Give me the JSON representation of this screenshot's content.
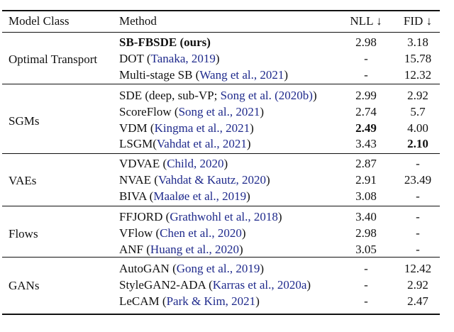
{
  "header": {
    "model_class": "Model Class",
    "method": "Method",
    "nll": "NLL ↓",
    "fid": "FID ↓"
  },
  "colors": {
    "citation": "#1f2a8c",
    "text": "#111111"
  },
  "groups": [
    {
      "name": "Optimal Transport",
      "rows": [
        {
          "pre": "SB-FBSDE (ours)",
          "cite": "",
          "post": "",
          "nll": "2.98",
          "fid": "3.18",
          "bold_method": true
        },
        {
          "pre": "DOT (",
          "cite": "Tanaka, 2019",
          "post": ")",
          "nll": "-",
          "fid": "15.78"
        },
        {
          "pre": "Multi-stage SB (",
          "cite": "Wang et al., 2021",
          "post": ")",
          "nll": "-",
          "fid": "12.32"
        }
      ]
    },
    {
      "name": "SGMs",
      "rows": [
        {
          "pre": "SDE (deep, sub-VP; ",
          "cite": "Song et al. (2020b)",
          "post": ")",
          "nll": "2.99",
          "fid": "2.92"
        },
        {
          "pre": "ScoreFlow (",
          "cite": "Song et al., 2021",
          "post": ")",
          "nll": "2.74",
          "fid": "5.7"
        },
        {
          "pre": "VDM (",
          "cite": "Kingma et al., 2021",
          "post": ")",
          "nll": "2.49",
          "fid": "4.00",
          "bold_nll": true
        },
        {
          "pre": "LSGM(",
          "cite": "Vahdat et al., 2021",
          "post": ")",
          "nll": "3.43",
          "fid": "2.10",
          "bold_fid": true
        }
      ]
    },
    {
      "name": "VAEs",
      "rows": [
        {
          "pre": "VDVAE (",
          "cite": "Child, 2020",
          "post": ")",
          "nll": "2.87",
          "fid": "-"
        },
        {
          "pre": "NVAE (",
          "cite": "Vahdat & Kautz, 2020",
          "post": ")",
          "nll": "2.91",
          "fid": "23.49"
        },
        {
          "pre": "BIVA (",
          "cite": "Maaløe et al., 2019",
          "post": ")",
          "nll": "3.08",
          "fid": "-"
        }
      ]
    },
    {
      "name": "Flows",
      "rows": [
        {
          "pre": "FFJORD (",
          "cite": "Grathwohl et al., 2018",
          "post": ")",
          "nll": "3.40",
          "fid": "-"
        },
        {
          "pre": "VFlow (",
          "cite": "Chen et al., 2020",
          "post": ")",
          "nll": "2.98",
          "fid": "-"
        },
        {
          "pre": "ANF (",
          "cite": "Huang et al., 2020",
          "post": ")",
          "nll": "3.05",
          "fid": "-"
        }
      ]
    },
    {
      "name": "GANs",
      "rows": [
        {
          "pre": "AutoGAN (",
          "cite": "Gong et al., 2019",
          "post": ")",
          "nll": "-",
          "fid": "12.42"
        },
        {
          "pre": "StyleGAN2-ADA (",
          "cite": "Karras et al., 2020a",
          "post": ")",
          "nll": "-",
          "fid": "2.92"
        },
        {
          "pre": "LeCAM (",
          "cite": "Park & Kim, 2021",
          "post": ")",
          "nll": "-",
          "fid": "2.47"
        }
      ]
    }
  ]
}
